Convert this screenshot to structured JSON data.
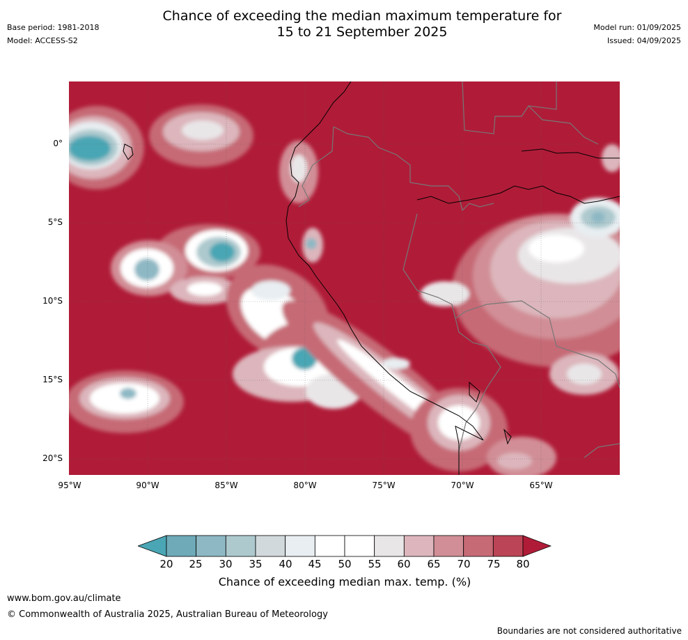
{
  "meta": {
    "base_period": "Base period: 1981-2018",
    "model": "Model: ACCESS-S2",
    "model_run": "Model run: 01/09/2025",
    "issued": "Issued: 04/09/2025"
  },
  "title": {
    "line1": "Chance of exceeding the median maximum temperature for",
    "line2": "15 to 21 September 2025"
  },
  "map": {
    "lat_labels": [
      "0°",
      "5°S",
      "10°S",
      "15°S",
      "20°S"
    ],
    "lon_labels": [
      "95°W",
      "90°W",
      "85°W",
      "80°W",
      "75°W",
      "70°W",
      "65°W"
    ],
    "ocean_dominant_color": "#b01c38",
    "high_color": "#b01c38",
    "low_color": "#4aa6b4"
  },
  "colorbar": {
    "ticks": [
      "20",
      "25",
      "30",
      "35",
      "40",
      "45",
      "50",
      "55",
      "60",
      "65",
      "70",
      "75",
      "80"
    ],
    "colors": [
      "#4aa6b4",
      "#6eaab8",
      "#8db8c4",
      "#adc9ce",
      "#d2d9dc",
      "#e8eef1",
      "#ffffff",
      "#ffffff",
      "#e9e6e8",
      "#dcb6bc",
      "#d18e96",
      "#c66a76",
      "#bb4556",
      "#b01c38"
    ],
    "title": "Chance of exceeding median max. temp. (%)"
  },
  "footer": {
    "url": "www.bom.gov.au/climate",
    "copyright": "© Commonwealth of Australia 2025, Australian Bureau of Meteorology",
    "disclaimer": "Boundaries are not considered authoritative"
  }
}
